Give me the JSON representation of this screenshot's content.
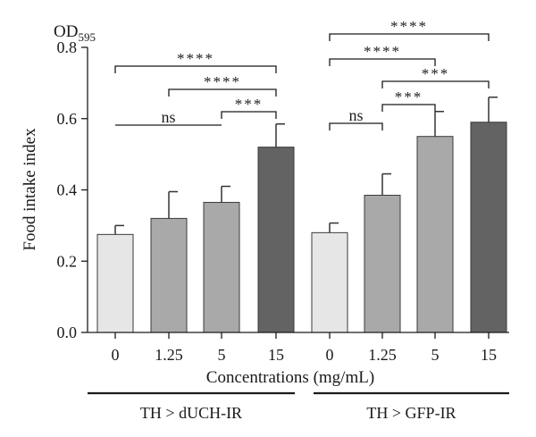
{
  "chart_data": {
    "type": "bar",
    "ylabel": "Food intake index",
    "ylabel_unit": "OD",
    "ylabel_unit_sub": "595",
    "xlabel": "Concentrations (mg/mL)",
    "ylim": [
      0,
      0.8
    ],
    "yticks": [
      "0.0",
      "0.2",
      "0.4",
      "0.6",
      "0.8"
    ],
    "yticks_values": [
      0,
      0.2,
      0.4,
      0.6,
      0.8
    ],
    "grid": false,
    "categories": [
      "0",
      "1.25",
      "5",
      "15",
      "0",
      "1.25",
      "5",
      "15"
    ],
    "values": [
      0.275,
      0.32,
      0.365,
      0.52,
      0.28,
      0.385,
      0.55,
      0.59
    ],
    "errors": [
      0.025,
      0.075,
      0.045,
      0.065,
      0.027,
      0.06,
      0.07,
      0.07
    ],
    "bar_colors": [
      "#e6e6e6",
      "#a9a9a9",
      "#a9a9a9",
      "#636363",
      "#e6e6e6",
      "#a9a9a9",
      "#a9a9a9",
      "#636363"
    ],
    "groups": [
      {
        "label": "TH > dUCH-IR",
        "bars": [
          0,
          1,
          2,
          3
        ]
      },
      {
        "label": "TH > GFP-IR",
        "bars": [
          4,
          5,
          6,
          7
        ]
      }
    ],
    "significance": [
      {
        "from": 0,
        "to": 3,
        "label": "****"
      },
      {
        "from": 1,
        "to": 3,
        "label": "****"
      },
      {
        "from": 0,
        "to": 2,
        "label": "ns"
      },
      {
        "from": 2,
        "to": 3,
        "label": "***"
      },
      {
        "from": 4,
        "to": 7,
        "label": "****"
      },
      {
        "from": 4,
        "to": 6,
        "label": "****"
      },
      {
        "from": 5,
        "to": 7,
        "label": "***"
      },
      {
        "from": 5,
        "to": 6,
        "label": "***"
      },
      {
        "from": 4,
        "to": 5,
        "label": "ns"
      }
    ]
  }
}
